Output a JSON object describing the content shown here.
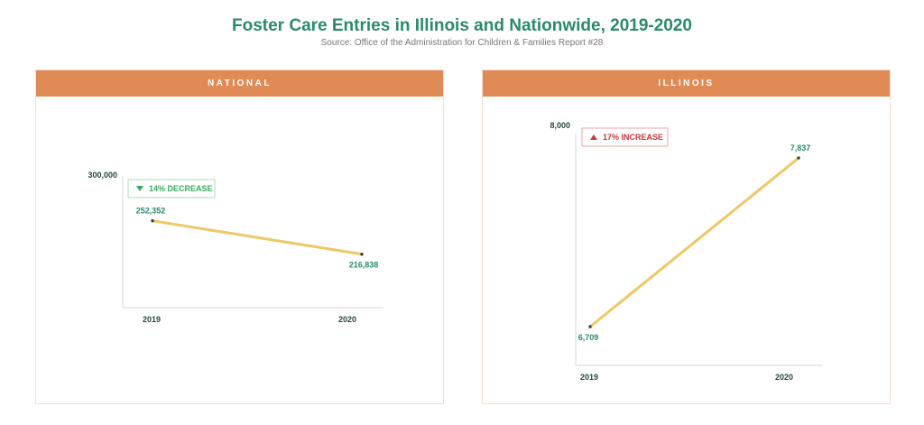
{
  "header": {
    "title": "Foster Care Entries in Illinois and Nationwide, 2019-2020",
    "subtitle": "Source: Office of the Administration for Children & Families Report #28"
  },
  "colors": {
    "title": "#2a8a6b",
    "panel_header": "#e08a55",
    "line": "#efc766",
    "value_label": "#2a8a6b",
    "axis_label": "#1f4a3c",
    "decrease": "#3aaa5a",
    "increase": "#c9353b"
  },
  "chart_data": [
    {
      "type": "line",
      "panel_title": "NATIONAL",
      "categories": [
        "2019",
        "2020"
      ],
      "values": [
        252352,
        216838
      ],
      "value_labels": [
        "252,352",
        "216,838"
      ],
      "ytick_label": "300,000",
      "ylim": [
        160000,
        300000
      ],
      "badge": {
        "text": "14% DECREASE",
        "direction": "down",
        "icon": "triangle-down-icon"
      },
      "xlabel": "",
      "ylabel": "",
      "grid": false
    },
    {
      "type": "line",
      "panel_title": "ILLINOIS",
      "categories": [
        "2019",
        "2020"
      ],
      "values": [
        6709,
        7837
      ],
      "value_labels": [
        "6,709",
        "7,837"
      ],
      "ytick_label": "8,000",
      "ylim": [
        6450,
        8000
      ],
      "badge": {
        "text": "17% INCREASE",
        "direction": "up",
        "icon": "triangle-up-icon"
      },
      "xlabel": "",
      "ylabel": "",
      "grid": false
    }
  ]
}
